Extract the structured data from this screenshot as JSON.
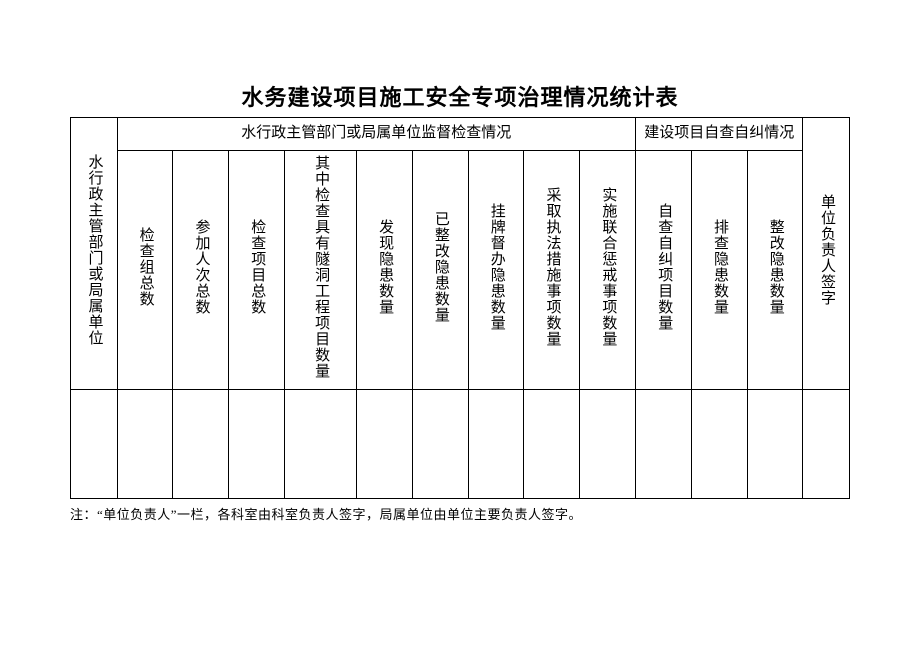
{
  "title": "水务建设项目施工安全专项治理情况统计表",
  "header": {
    "col1": "水行政主管部门或局属单位",
    "group1": "水行政主管部门或局属单位监督检查情况",
    "group2": "建设项目自查自纠情况",
    "col_last": "单位负责人签字",
    "sub": {
      "g1c1": "检查组总数",
      "g1c2": "参加人次总数",
      "g1c3": "检查项目总数",
      "g1c4": "其中检查具有隧洞工程项目数量",
      "g1c5": "发现隐患数量",
      "g1c6": "已整改隐患数量",
      "g1c7": "挂牌督办隐患数量",
      "g1c8": "采取执法措施事项数量",
      "g1c9": "实施联合惩戒事项数量",
      "g2c1": "自查自纠项目数量",
      "g2c2": "排查隐患数量",
      "g2c3": "整改隐患数量"
    }
  },
  "rows": [
    {
      "c1": "",
      "g1c1": "",
      "g1c2": "",
      "g1c3": "",
      "g1c4": "",
      "g1c5": "",
      "g1c6": "",
      "g1c7": "",
      "g1c8": "",
      "g1c9": "",
      "g2c1": "",
      "g2c2": "",
      "g2c3": "",
      "last": ""
    }
  ],
  "footnote": "注：“单位负责人”一栏，各科室由科室负责人签字，局属单位由单位主要负责人签字。"
}
